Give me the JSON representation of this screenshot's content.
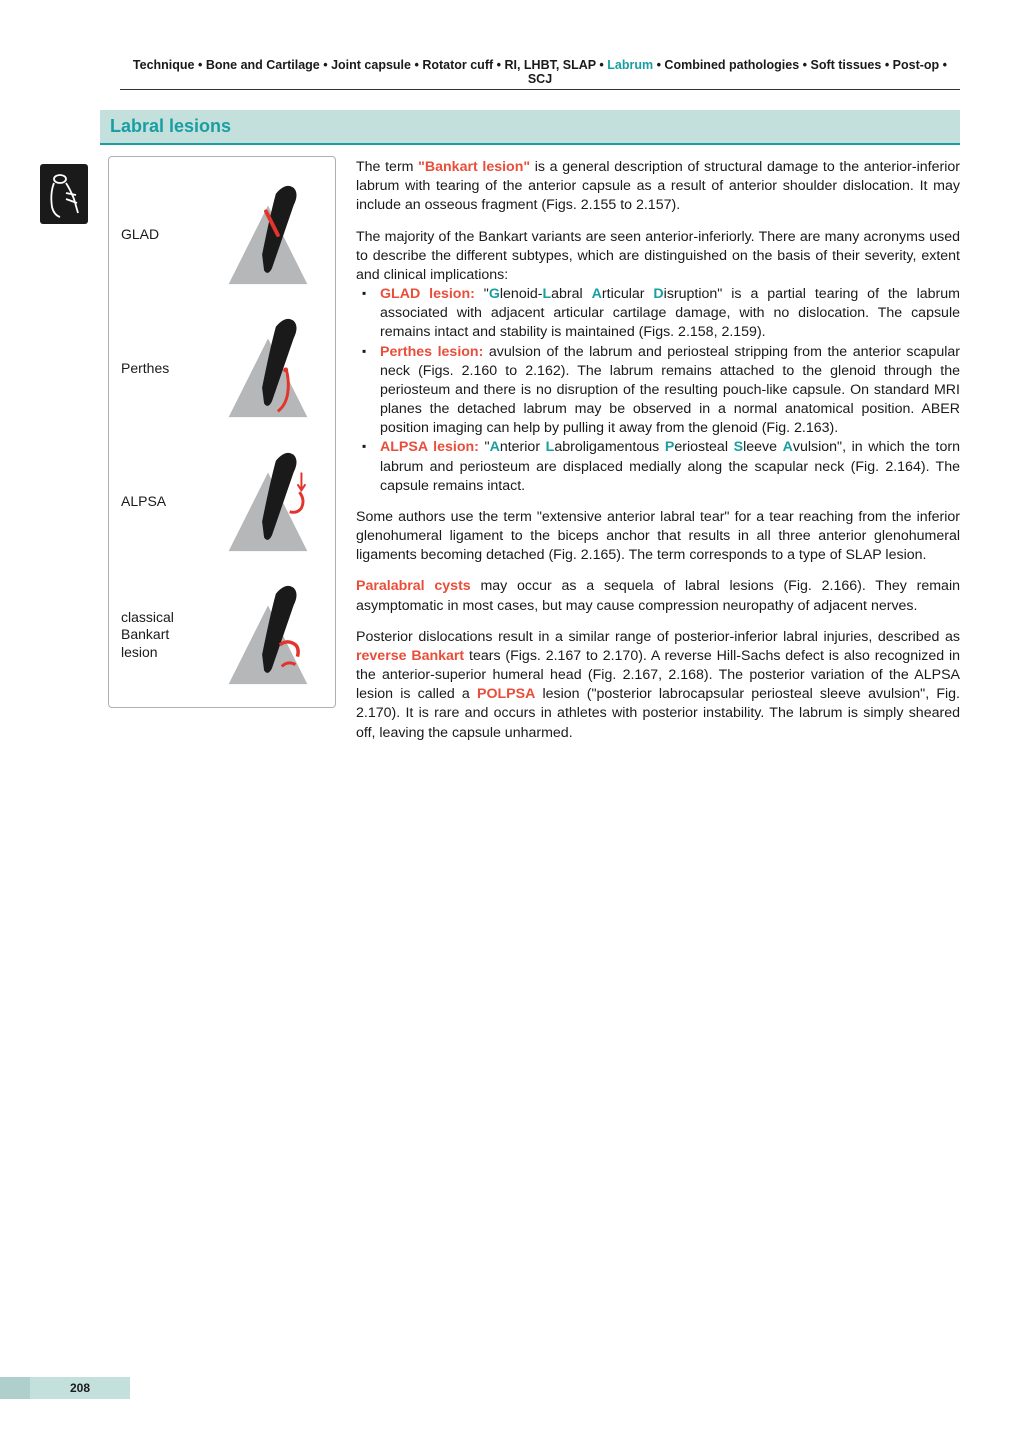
{
  "colors": {
    "teal": "#1a9ea1",
    "teal_light": "#c3e0dd",
    "accent_red": "#e94e3a",
    "text": "#1a1a1a",
    "border_gray": "#b0b0b0",
    "diagram_gray": "#b5b7b9",
    "diagram_dark": "#1a1a1a",
    "diagram_red": "#e2342b"
  },
  "breadcrumb": {
    "items": [
      "Technique",
      "Bone and Cartilage",
      "Joint capsule",
      "Rotator cuff",
      "RI, LHBT, SLAP",
      "Labrum",
      "Combined pathologies",
      "Soft tissues",
      "Post-op",
      "SCJ"
    ],
    "highlight_index": 5,
    "sep": " • "
  },
  "section_title": "Labral lesions",
  "diagrams": [
    {
      "label": "GLAD",
      "type": "glad"
    },
    {
      "label": "Perthes",
      "type": "perthes"
    },
    {
      "label": "ALPSA",
      "type": "alpsa"
    },
    {
      "label": "classical Bankart lesion",
      "type": "bankart"
    }
  ],
  "text": {
    "p1_a": "The term ",
    "p1_b": "\"Bankart lesion\"",
    "p1_c": " is a general description of structural damage to the anterior-inferior labrum with tearing of the anterior capsule as a result of anterior shoulder dislocation. It may include an osseous fragment (Figs. 2.155 to 2.157).",
    "p2": "The majority of the Bankart variants are seen anterior-inferiorly. There are many acronyms used to describe the different subtypes, which are distinguished on the basis of their severity, extent and clinical implications:",
    "li1_a": "GLAD lesion: ",
    "li1_b": "\"",
    "li1_g": "G",
    "li1_c": "lenoid-",
    "li1_l": "L",
    "li1_d": "abral ",
    "li1_ar": "A",
    "li1_e": "rticular ",
    "li1_di": "D",
    "li1_f": "isruption\" is a partial tearing of the labrum associated with adjacent articular cartilage damage, with no dislocation. The capsule remains intact and stability is maintained (Figs. 2.158, 2.159).",
    "li2_a": "Perthes lesion:",
    "li2_b": " avulsion of the labrum and periosteal stripping from the anterior scapular neck (Figs. 2.160 to 2.162). The labrum remains attached to the glenoid through the periosteum and there is no disruption of the resulting pouch-like capsule. On standard MRI planes the detached labrum may be observed in a normal anatomical position. ABER position imaging can help by pulling it away from the glenoid (Fig. 2.163).",
    "li3_a": "ALPSA lesion: ",
    "li3_q": "\"",
    "li3_an": "A",
    "li3_b": "nterior ",
    "li3_la": "L",
    "li3_c": "abroligamentous ",
    "li3_pe": "P",
    "li3_d": "eriosteal ",
    "li3_sl": "S",
    "li3_e": "leeve ",
    "li3_av": "A",
    "li3_f": "vulsion\", in which the torn labrum and periosteum are displaced medially along the scapular neck (Fig. 2.164). The capsule remains intact.",
    "p3": "Some authors use the term \"extensive anterior labral tear\" for a tear reaching from the inferior glenohumeral ligament to the biceps anchor that results in all three anterior glenohumeral ligaments becoming detached (Fig. 2.165). The term corresponds to a type of SLAP lesion.",
    "p4_a": "Paralabral cysts",
    "p4_b": " may occur as a sequela of labral lesions (Fig. 2.166). They remain asymptomatic in most cases, but may cause compression neuropathy of adjacent nerves.",
    "p5_a": "Posterior dislocations result in a similar range of posterior-inferior labral injuries, described as ",
    "p5_b": "reverse Bankart",
    "p5_c": " tears (Figs. 2.167 to 2.170). A reverse Hill-Sachs defect is also recognized in the anterior-superior humeral head (Fig. 2.167, 2.168). The posterior variation of the ALPSA lesion is called a ",
    "p5_d": "POLPSA",
    "p5_e": " lesion (\"posterior labrocapsular periosteal sleeve avulsion\", Fig. 2.170). It is rare and occurs in athletes with posterior instability. The labrum is simply sheared off, leaving the capsule unharmed."
  },
  "page_number": "208"
}
